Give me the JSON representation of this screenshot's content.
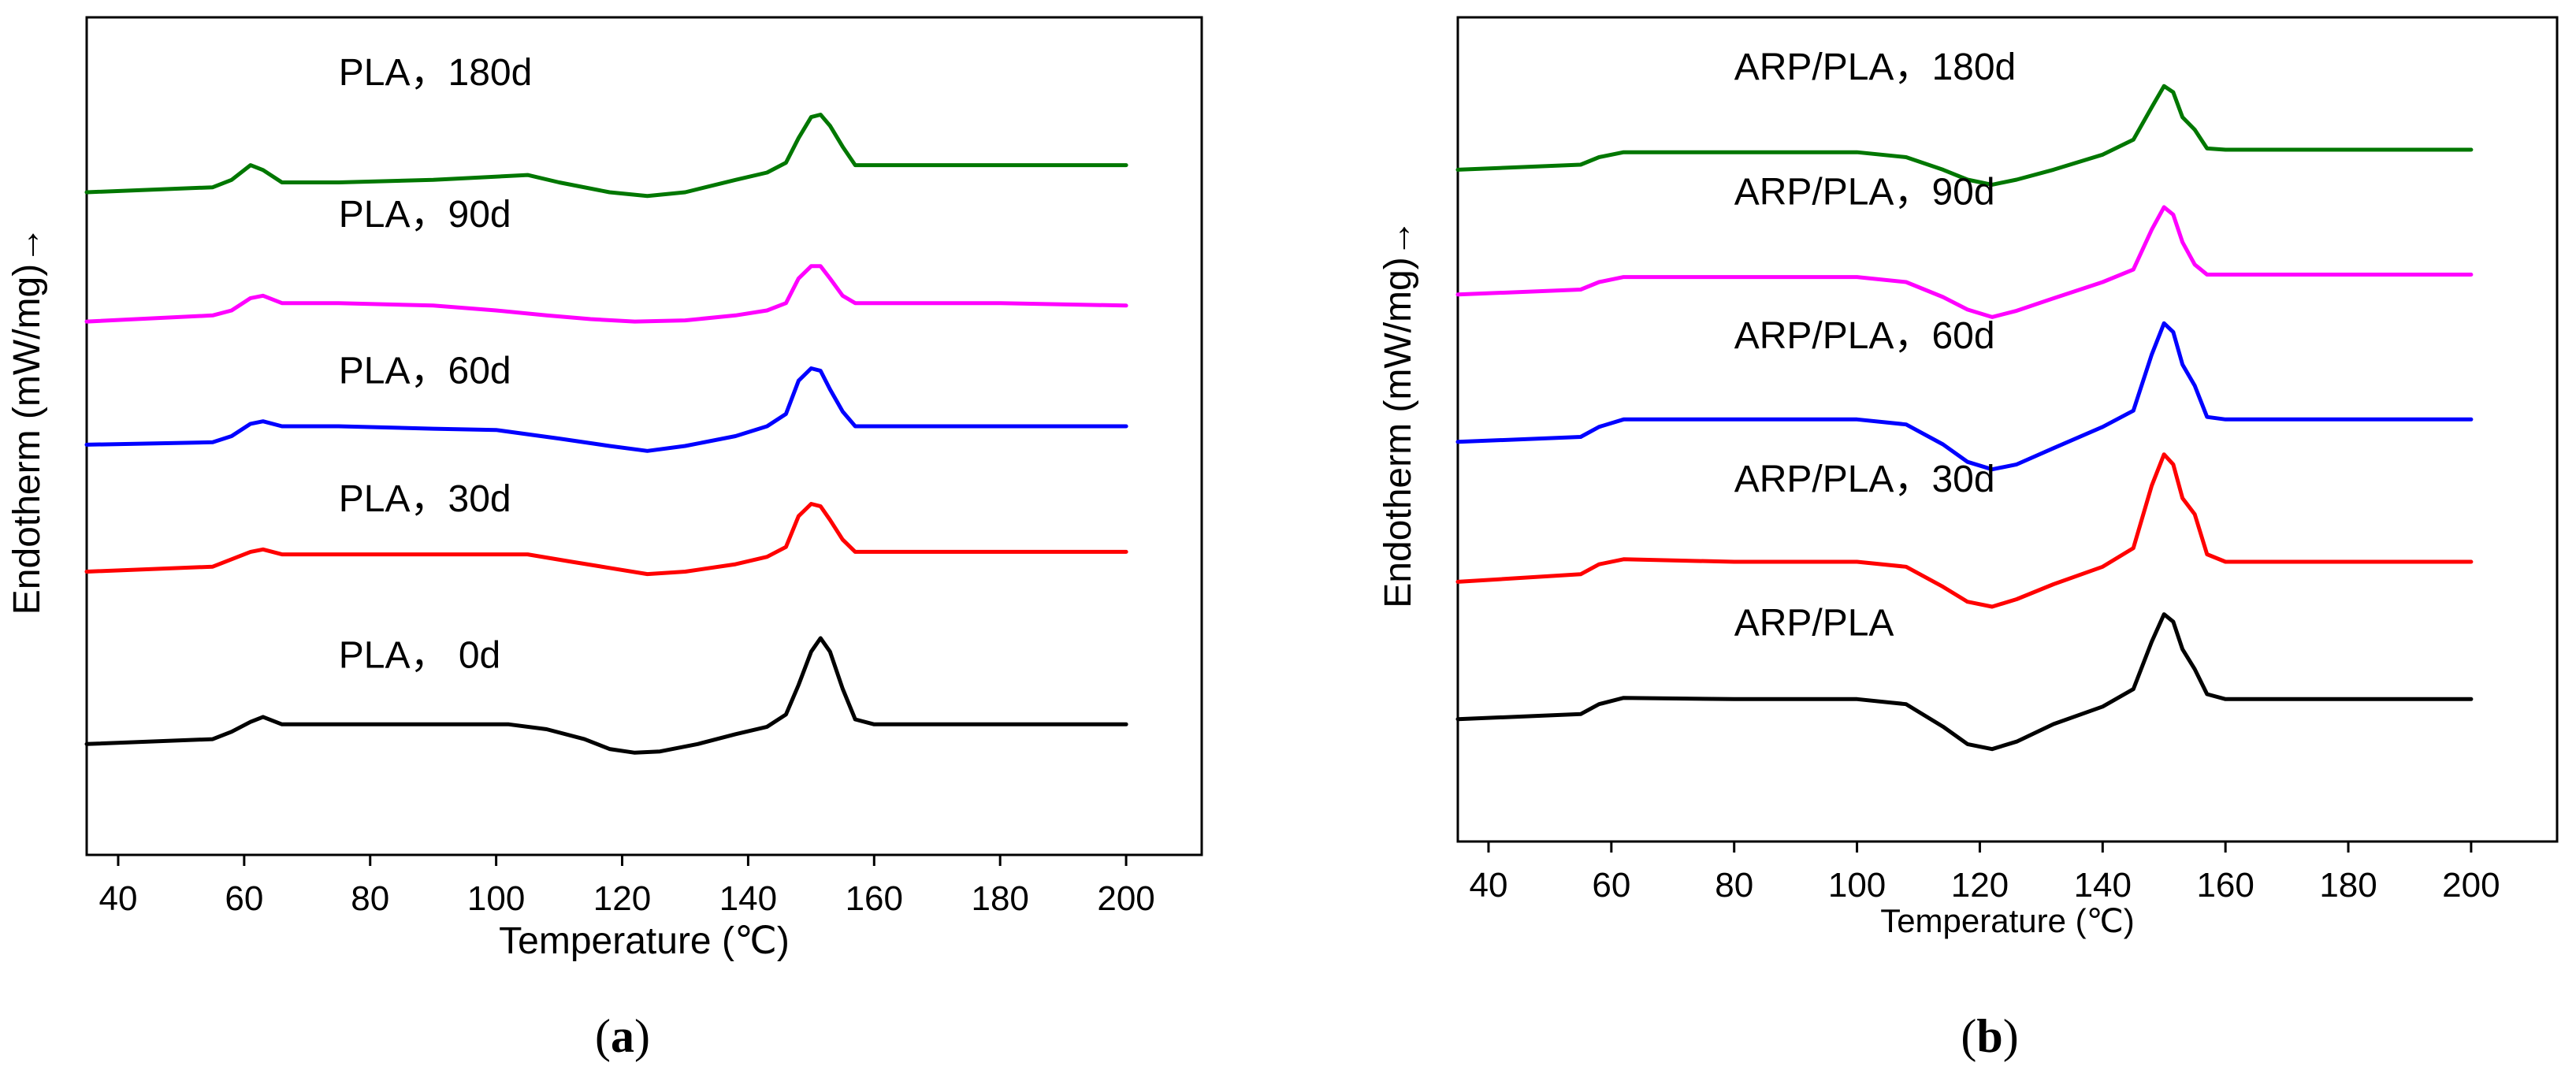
{
  "chart_data": [
    {
      "type": "line",
      "panel_label": "a",
      "xlabel": "Temperature (℃)",
      "ylabel": "Endotherm (mW/mg)→",
      "xlim": [
        35,
        212
      ],
      "x_ticks": [
        40,
        60,
        80,
        100,
        120,
        140,
        160,
        180,
        200
      ],
      "y_ticks_shown": false,
      "series": [
        {
          "name": "PLA，180d",
          "color": "#007700",
          "baseline": 4.6,
          "label_at": [
            75,
            5.45
          ],
          "points": [
            [
              35,
              4.58
            ],
            [
              55,
              4.62
            ],
            [
              58,
              4.68
            ],
            [
              61,
              4.8
            ],
            [
              63,
              4.76
            ],
            [
              66,
              4.66
            ],
            [
              75,
              4.66
            ],
            [
              90,
              4.68
            ],
            [
              105,
              4.72
            ],
            [
              110,
              4.66
            ],
            [
              118,
              4.58
            ],
            [
              124,
              4.55
            ],
            [
              130,
              4.58
            ],
            [
              138,
              4.68
            ],
            [
              143,
              4.74
            ],
            [
              146,
              4.82
            ],
            [
              148,
              5.02
            ],
            [
              150,
              5.19
            ],
            [
              151.5,
              5.21
            ],
            [
              153,
              5.12
            ],
            [
              155,
              4.95
            ],
            [
              157,
              4.8
            ],
            [
              165,
              4.8
            ],
            [
              200,
              4.8
            ]
          ]
        },
        {
          "name": "PLA，90d",
          "color": "#ff00ff",
          "baseline": 3.55,
          "label_at": [
            75,
            4.3
          ],
          "points": [
            [
              35,
              3.53
            ],
            [
              55,
              3.58
            ],
            [
              58,
              3.62
            ],
            [
              61,
              3.72
            ],
            [
              63,
              3.74
            ],
            [
              66,
              3.68
            ],
            [
              75,
              3.68
            ],
            [
              90,
              3.66
            ],
            [
              100,
              3.62
            ],
            [
              108,
              3.58
            ],
            [
              115,
              3.55
            ],
            [
              122,
              3.53
            ],
            [
              130,
              3.54
            ],
            [
              138,
              3.58
            ],
            [
              143,
              3.62
            ],
            [
              146,
              3.68
            ],
            [
              148,
              3.88
            ],
            [
              150,
              3.98
            ],
            [
              151.5,
              3.98
            ],
            [
              153,
              3.88
            ],
            [
              155,
              3.74
            ],
            [
              157,
              3.68
            ],
            [
              180,
              3.68
            ],
            [
              200,
              3.66
            ]
          ]
        },
        {
          "name": "PLA，60d",
          "color": "#0000ff",
          "baseline": 2.55,
          "label_at": [
            75,
            3.03
          ],
          "points": [
            [
              35,
              2.53
            ],
            [
              55,
              2.55
            ],
            [
              58,
              2.6
            ],
            [
              61,
              2.7
            ],
            [
              63,
              2.72
            ],
            [
              66,
              2.68
            ],
            [
              75,
              2.68
            ],
            [
              90,
              2.66
            ],
            [
              100,
              2.65
            ],
            [
              110,
              2.58
            ],
            [
              118,
              2.52
            ],
            [
              124,
              2.48
            ],
            [
              130,
              2.52
            ],
            [
              138,
              2.6
            ],
            [
              143,
              2.68
            ],
            [
              146,
              2.78
            ],
            [
              148,
              3.05
            ],
            [
              150,
              3.15
            ],
            [
              151.5,
              3.13
            ],
            [
              153,
              2.98
            ],
            [
              155,
              2.8
            ],
            [
              157,
              2.68
            ],
            [
              200,
              2.68
            ]
          ]
        },
        {
          "name": "PLA，30d",
          "color": "#ff0000",
          "baseline": 1.52,
          "label_at": [
            75,
            1.99
          ],
          "points": [
            [
              35,
              1.5
            ],
            [
              55,
              1.54
            ],
            [
              58,
              1.6
            ],
            [
              61,
              1.66
            ],
            [
              63,
              1.68
            ],
            [
              66,
              1.64
            ],
            [
              75,
              1.64
            ],
            [
              90,
              1.64
            ],
            [
              105,
              1.64
            ],
            [
              112,
              1.58
            ],
            [
              118,
              1.53
            ],
            [
              124,
              1.48
            ],
            [
              130,
              1.5
            ],
            [
              138,
              1.56
            ],
            [
              143,
              1.62
            ],
            [
              146,
              1.7
            ],
            [
              148,
              1.95
            ],
            [
              150,
              2.05
            ],
            [
              151.5,
              2.03
            ],
            [
              153,
              1.92
            ],
            [
              155,
              1.76
            ],
            [
              157,
              1.66
            ],
            [
              200,
              1.66
            ]
          ]
        },
        {
          "name": "PLA，  0d",
          "color": "#000000",
          "baseline": 0.1,
          "label_at": [
            75,
            0.72
          ],
          "points": [
            [
              35,
              0.1
            ],
            [
              55,
              0.14
            ],
            [
              58,
              0.2
            ],
            [
              61,
              0.28
            ],
            [
              63,
              0.32
            ],
            [
              66,
              0.26
            ],
            [
              75,
              0.26
            ],
            [
              90,
              0.26
            ],
            [
              102,
              0.26
            ],
            [
              108,
              0.22
            ],
            [
              114,
              0.14
            ],
            [
              118,
              0.06
            ],
            [
              122,
              0.03
            ],
            [
              126,
              0.04
            ],
            [
              132,
              0.1
            ],
            [
              138,
              0.18
            ],
            [
              143,
              0.24
            ],
            [
              146,
              0.34
            ],
            [
              148,
              0.58
            ],
            [
              150,
              0.85
            ],
            [
              151.5,
              0.96
            ],
            [
              153,
              0.85
            ],
            [
              155,
              0.55
            ],
            [
              157,
              0.3
            ],
            [
              160,
              0.26
            ],
            [
              200,
              0.26
            ]
          ]
        }
      ]
    },
    {
      "type": "line",
      "panel_label": "b",
      "xlabel": "Temperature (℃)",
      "ylabel": "Endotherm (mW/mg)→",
      "xlim": [
        35,
        214
      ],
      "x_ticks": [
        40,
        60,
        80,
        100,
        120,
        140,
        160,
        180,
        200
      ],
      "y_ticks_shown": false,
      "series": [
        {
          "name": "ARP/PLA，180d",
          "color": "#007700",
          "baseline": 4.8,
          "label_at": [
            80,
            5.5
          ],
          "points": [
            [
              35,
              4.78
            ],
            [
              55,
              4.82
            ],
            [
              58,
              4.88
            ],
            [
              62,
              4.92
            ],
            [
              80,
              4.92
            ],
            [
              100,
              4.92
            ],
            [
              108,
              4.88
            ],
            [
              114,
              4.78
            ],
            [
              118,
              4.7
            ],
            [
              122,
              4.66
            ],
            [
              126,
              4.7
            ],
            [
              132,
              4.78
            ],
            [
              140,
              4.9
            ],
            [
              145,
              5.02
            ],
            [
              148,
              5.28
            ],
            [
              150,
              5.45
            ],
            [
              151.5,
              5.4
            ],
            [
              153,
              5.2
            ],
            [
              155,
              5.1
            ],
            [
              157,
              4.95
            ],
            [
              160,
              4.94
            ],
            [
              200,
              4.94
            ]
          ]
        },
        {
          "name": "ARP/PLA，90d",
          "color": "#ff00ff",
          "baseline": 3.8,
          "label_at": [
            80,
            4.5
          ],
          "points": [
            [
              35,
              3.78
            ],
            [
              55,
              3.82
            ],
            [
              58,
              3.88
            ],
            [
              62,
              3.92
            ],
            [
              80,
              3.92
            ],
            [
              100,
              3.92
            ],
            [
              108,
              3.88
            ],
            [
              114,
              3.76
            ],
            [
              118,
              3.66
            ],
            [
              122,
              3.6
            ],
            [
              126,
              3.65
            ],
            [
              132,
              3.75
            ],
            [
              140,
              3.88
            ],
            [
              145,
              3.98
            ],
            [
              148,
              4.3
            ],
            [
              150,
              4.48
            ],
            [
              151.5,
              4.42
            ],
            [
              153,
              4.2
            ],
            [
              155,
              4.02
            ],
            [
              157,
              3.94
            ],
            [
              160,
              3.94
            ],
            [
              200,
              3.94
            ]
          ]
        },
        {
          "name": "ARP/PLA，60d",
          "color": "#0000ff",
          "baseline": 2.62,
          "label_at": [
            80,
            3.35
          ],
          "points": [
            [
              35,
              2.6
            ],
            [
              55,
              2.64
            ],
            [
              58,
              2.72
            ],
            [
              62,
              2.78
            ],
            [
              80,
              2.78
            ],
            [
              100,
              2.78
            ],
            [
              108,
              2.74
            ],
            [
              114,
              2.58
            ],
            [
              118,
              2.44
            ],
            [
              122,
              2.38
            ],
            [
              126,
              2.42
            ],
            [
              132,
              2.55
            ],
            [
              140,
              2.72
            ],
            [
              145,
              2.85
            ],
            [
              148,
              3.3
            ],
            [
              150,
              3.55
            ],
            [
              151.5,
              3.48
            ],
            [
              153,
              3.22
            ],
            [
              155,
              3.05
            ],
            [
              157,
              2.8
            ],
            [
              160,
              2.78
            ],
            [
              200,
              2.78
            ]
          ]
        },
        {
          "name": "ARP/PLA，30d",
          "color": "#ff0000",
          "baseline": 1.5,
          "label_at": [
            80,
            2.2
          ],
          "points": [
            [
              35,
              1.48
            ],
            [
              55,
              1.54
            ],
            [
              58,
              1.62
            ],
            [
              62,
              1.66
            ],
            [
              80,
              1.64
            ],
            [
              100,
              1.64
            ],
            [
              108,
              1.6
            ],
            [
              114,
              1.44
            ],
            [
              118,
              1.32
            ],
            [
              122,
              1.28
            ],
            [
              126,
              1.34
            ],
            [
              132,
              1.46
            ],
            [
              140,
              1.6
            ],
            [
              145,
              1.75
            ],
            [
              148,
              2.25
            ],
            [
              150,
              2.5
            ],
            [
              151.5,
              2.42
            ],
            [
              153,
              2.15
            ],
            [
              155,
              2.02
            ],
            [
              157,
              1.7
            ],
            [
              160,
              1.64
            ],
            [
              200,
              1.64
            ]
          ]
        },
        {
          "name": "ARP/PLA",
          "color": "#000000",
          "baseline": 0.4,
          "label_at": [
            80,
            1.05
          ],
          "points": [
            [
              35,
              0.38
            ],
            [
              55,
              0.42
            ],
            [
              58,
              0.5
            ],
            [
              62,
              0.55
            ],
            [
              80,
              0.54
            ],
            [
              100,
              0.54
            ],
            [
              108,
              0.5
            ],
            [
              114,
              0.32
            ],
            [
              118,
              0.18
            ],
            [
              122,
              0.14
            ],
            [
              126,
              0.2
            ],
            [
              132,
              0.34
            ],
            [
              140,
              0.48
            ],
            [
              145,
              0.62
            ],
            [
              148,
              1.0
            ],
            [
              150,
              1.22
            ],
            [
              151.5,
              1.16
            ],
            [
              153,
              0.94
            ],
            [
              155,
              0.78
            ],
            [
              157,
              0.58
            ],
            [
              160,
              0.54
            ],
            [
              200,
              0.54
            ]
          ]
        }
      ]
    }
  ]
}
